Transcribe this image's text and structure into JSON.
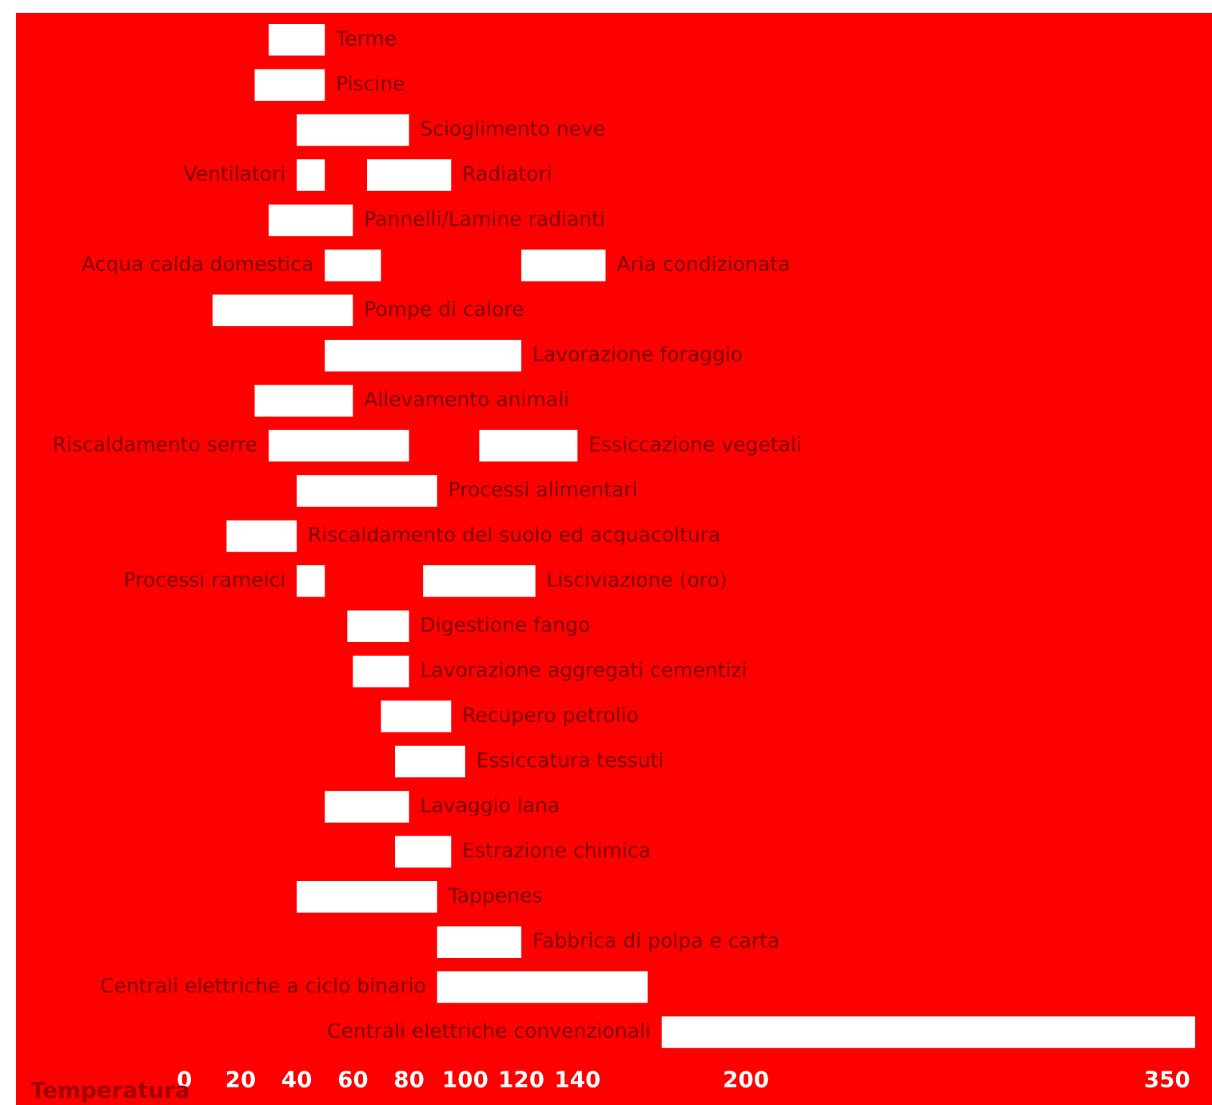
{
  "chart_data": {
    "type": "bar",
    "orientation": "horizontal",
    "xlabel": "Temperatura",
    "categories": [
      "Terme",
      "Piscine",
      "Scioglimento neve",
      "Radiatori",
      "Pannelli/Lamine radianti",
      "Aria condizionata",
      "Pompe di calore",
      "Lavorazione foraggio",
      "Allevamento animali",
      "Essiccazione vegetali",
      "Processi alimentari",
      "Riscaldamento del suolo ed acquacoltura",
      "Lisciviazione (oro)",
      "Digestione fango",
      "Lavorazione aggregati cementizi",
      "Recupero petrolio",
      "Essiccatura tessuti",
      "Lavaggio lana",
      "Estrazione chimica",
      "Tappenes",
      "Fabbrica di polpa e carta",
      null,
      null
    ],
    "series": [
      {
        "color": "#ffffff",
        "base": [
          30,
          25,
          40,
          65,
          30,
          120,
          10,
          50,
          25,
          105,
          40,
          15,
          85,
          58,
          60,
          70,
          75,
          50,
          75,
          40,
          90,
          null,
          null
        ],
        "values": [
          20,
          25,
          40,
          30,
          30,
          30,
          50,
          70,
          35,
          35,
          50,
          25,
          40,
          22,
          20,
          25,
          25,
          30,
          20,
          50,
          30,
          null,
          null
        ]
      },
      {
        "color": "#ffffff",
        "base": [
          null,
          null,
          null,
          40,
          null,
          50,
          null,
          null,
          null,
          30,
          null,
          null,
          40,
          null,
          null,
          null,
          null,
          null,
          null,
          null,
          null,
          90,
          170
        ],
        "values": [
          null,
          null,
          null,
          10,
          null,
          20,
          null,
          null,
          null,
          50,
          null,
          null,
          10,
          null,
          null,
          null,
          null,
          null,
          null,
          null,
          null,
          75,
          190
        ],
        "value_labels": [
          null,
          null,
          null,
          "Ventilatori",
          null,
          "Acqua calda domestica",
          null,
          null,
          null,
          "Riscaldamento serre",
          null,
          null,
          "Processi rameici",
          null,
          null,
          null,
          null,
          null,
          null,
          null,
          null,
          "Centrali elettriche a ciclo binario",
          "Centrali elettriche convenzionali"
        ]
      }
    ],
    "xlim": [
      -60,
      366
    ],
    "xticks": [
      0,
      20,
      40,
      60,
      80,
      100,
      120,
      140,
      200,
      350
    ],
    "tick_labels": "x",
    "grid": false,
    "legend": false
  }
}
